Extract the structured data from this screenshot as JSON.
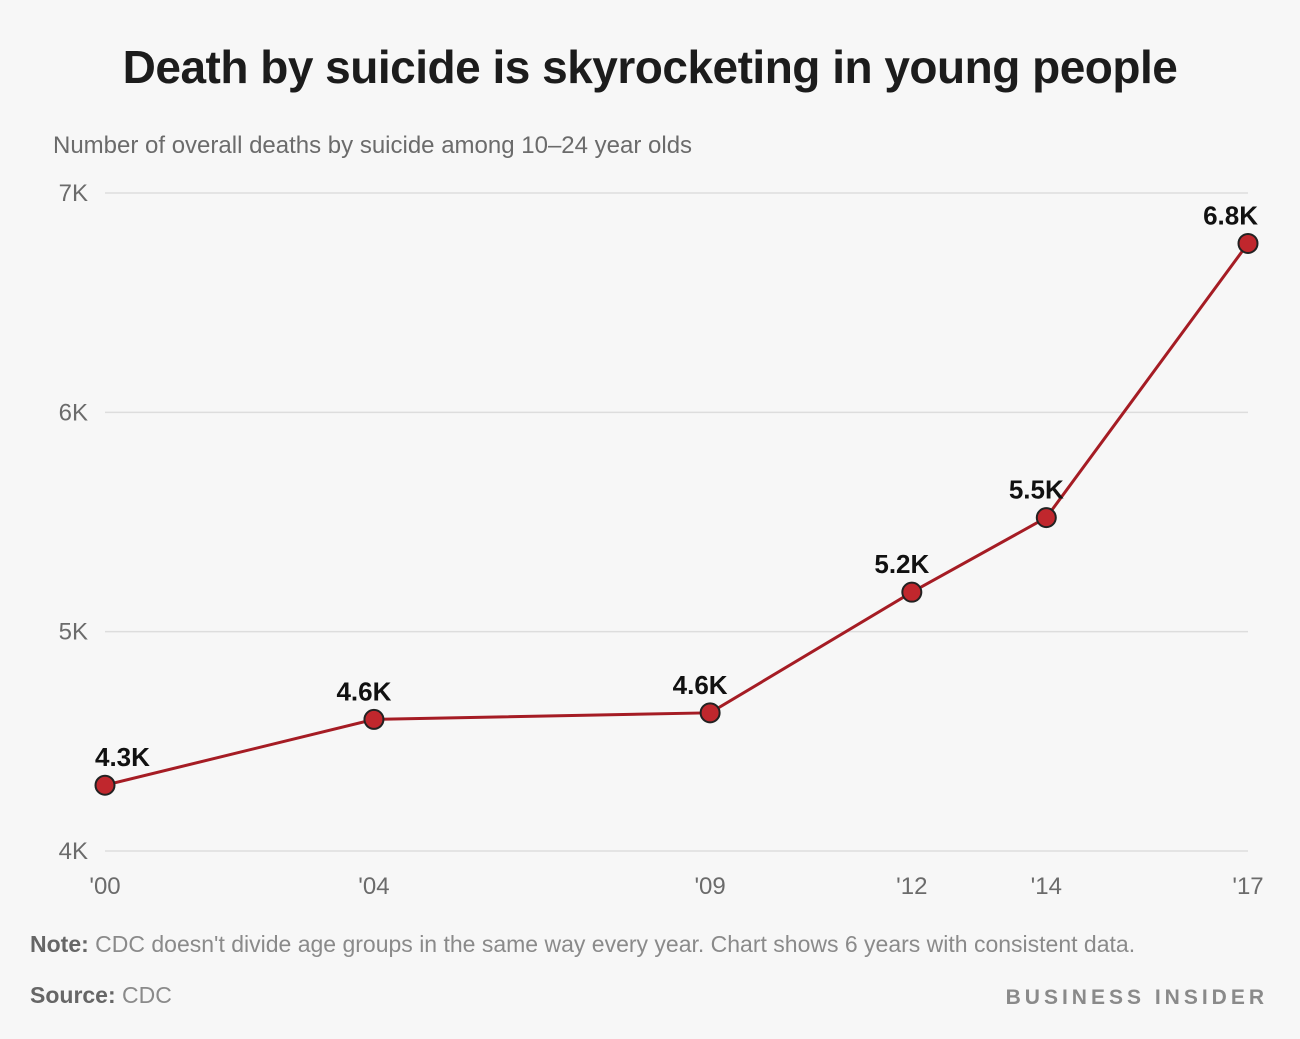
{
  "title": "Death by suicide is skyrocketing in young people",
  "subtitle": "Number of overall deaths by suicide among 10–24 year olds",
  "note_label": "Note:",
  "note_text": "CDC doesn't divide age groups in the same way every year. Chart shows 6 years with consistent data.",
  "source_label": "Source:",
  "source_text": "CDC",
  "brand": "BUSINESS INSIDER",
  "colors": {
    "line": "#a51c24",
    "marker_fill": "#c0272d",
    "marker_stroke": "#222222",
    "grid": "#dddddd",
    "axis_text": "#6b6b6b"
  },
  "chart_data": {
    "type": "line",
    "x": [
      2000,
      2004,
      2009,
      2012,
      2014,
      2017
    ],
    "x_tick_labels": [
      "'00",
      "'04",
      "'09",
      "'12",
      "'14",
      "'17"
    ],
    "values": [
      4300,
      4600,
      4630,
      5180,
      5520,
      6770
    ],
    "data_labels": [
      "4.3K",
      "4.6K",
      "4.6K",
      "5.2K",
      "5.5K",
      "6.8K"
    ],
    "y_ticks": [
      4000,
      5000,
      6000,
      7000
    ],
    "y_tick_labels": [
      "4K",
      "5K",
      "6K",
      "7K"
    ],
    "ylim": [
      4000,
      7000
    ],
    "xlim": [
      2000,
      2017
    ],
    "grid": true,
    "legend": "none"
  }
}
